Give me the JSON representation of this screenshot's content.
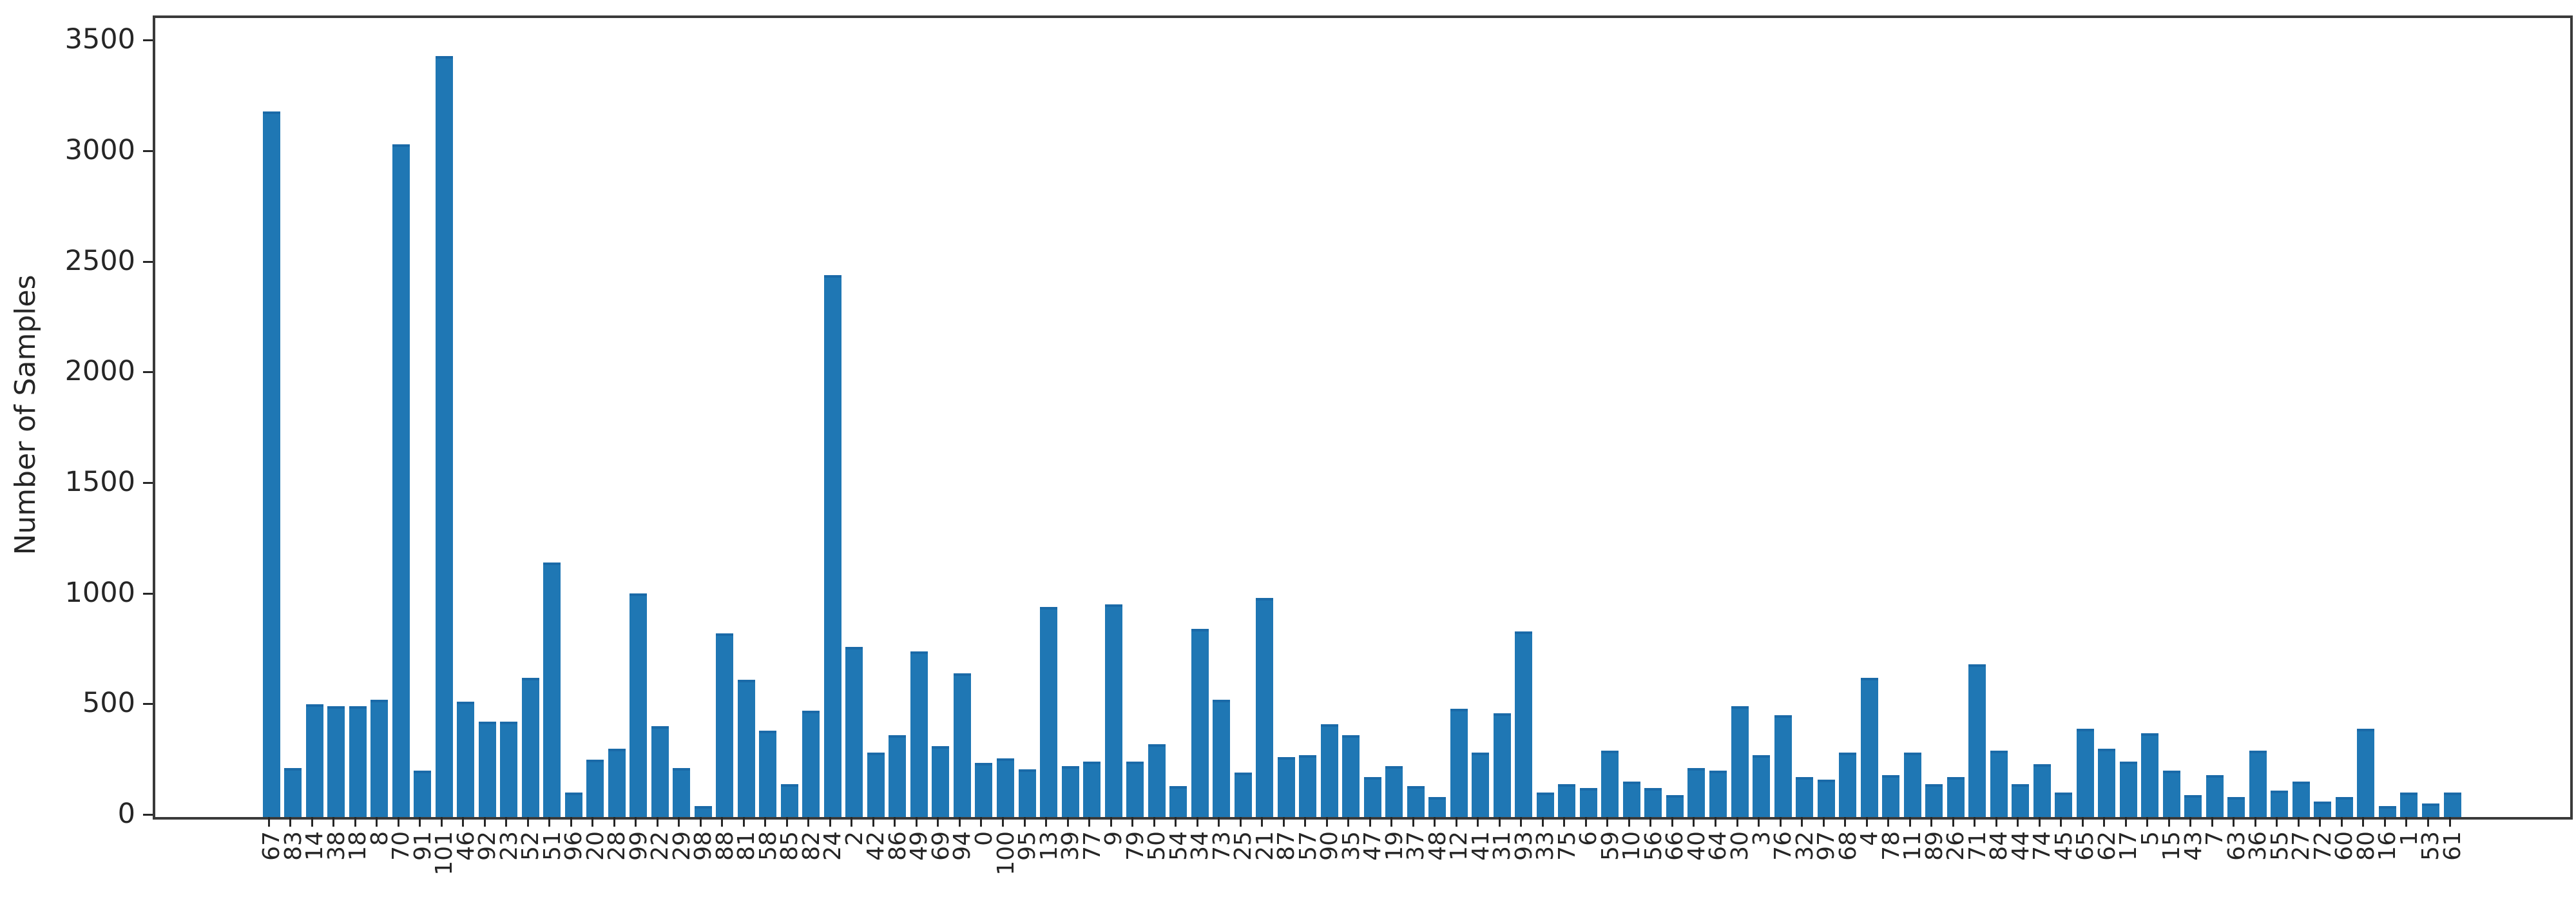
{
  "figure": {
    "background": "#ffffff",
    "bar_color": "#1f77b4",
    "spine_color": "#3a3a3a",
    "text_color": "#262626"
  },
  "chart_data": {
    "type": "bar",
    "title": "",
    "xlabel": "",
    "ylabel": "Number of Samples",
    "legend": null,
    "grid": false,
    "ylim": [
      0,
      3612
    ],
    "yticks": [
      0,
      500,
      1000,
      1500,
      2000,
      2500,
      3000,
      3500
    ],
    "x_tick_rotation": 90,
    "categories": [
      "67",
      "83",
      "14",
      "38",
      "18",
      "8",
      "70",
      "91",
      "101",
      "46",
      "92",
      "23",
      "52",
      "51",
      "96",
      "20",
      "28",
      "99",
      "22",
      "29",
      "98",
      "88",
      "81",
      "58",
      "85",
      "82",
      "24",
      "2",
      "42",
      "86",
      "49",
      "69",
      "94",
      "0",
      "100",
      "95",
      "13",
      "39",
      "77",
      "9",
      "79",
      "50",
      "54",
      "34",
      "73",
      "25",
      "21",
      "87",
      "57",
      "90",
      "35",
      "47",
      "19",
      "37",
      "48",
      "12",
      "41",
      "31",
      "93",
      "33",
      "75",
      "6",
      "59",
      "10",
      "56",
      "66",
      "40",
      "64",
      "30",
      "3",
      "76",
      "32",
      "97",
      "68",
      "4",
      "78",
      "11",
      "89",
      "26",
      "71",
      "84",
      "44",
      "74",
      "45",
      "65",
      "62",
      "17",
      "5",
      "15",
      "43",
      "7",
      "63",
      "36",
      "55",
      "27",
      "72",
      "60",
      "80",
      "16",
      "1",
      "53",
      "61"
    ],
    "values": [
      3190,
      220,
      510,
      500,
      500,
      530,
      3040,
      210,
      3440,
      520,
      430,
      430,
      630,
      1150,
      110,
      260,
      310,
      1010,
      410,
      220,
      50,
      830,
      620,
      390,
      150,
      480,
      2450,
      770,
      290,
      370,
      750,
      320,
      650,
      245,
      265,
      215,
      950,
      230,
      250,
      960,
      250,
      330,
      140,
      850,
      530,
      200,
      990,
      270,
      280,
      420,
      370,
      180,
      230,
      140,
      90,
      490,
      290,
      470,
      840,
      110,
      150,
      130,
      300,
      160,
      130,
      100,
      220,
      210,
      500,
      280,
      460,
      180,
      170,
      290,
      630,
      190,
      290,
      150,
      180,
      690,
      300,
      150,
      240,
      110,
      400,
      310,
      250,
      380,
      210,
      100,
      190,
      90,
      300,
      120,
      160,
      70,
      90,
      400,
      50,
      110,
      60,
      110
    ]
  }
}
